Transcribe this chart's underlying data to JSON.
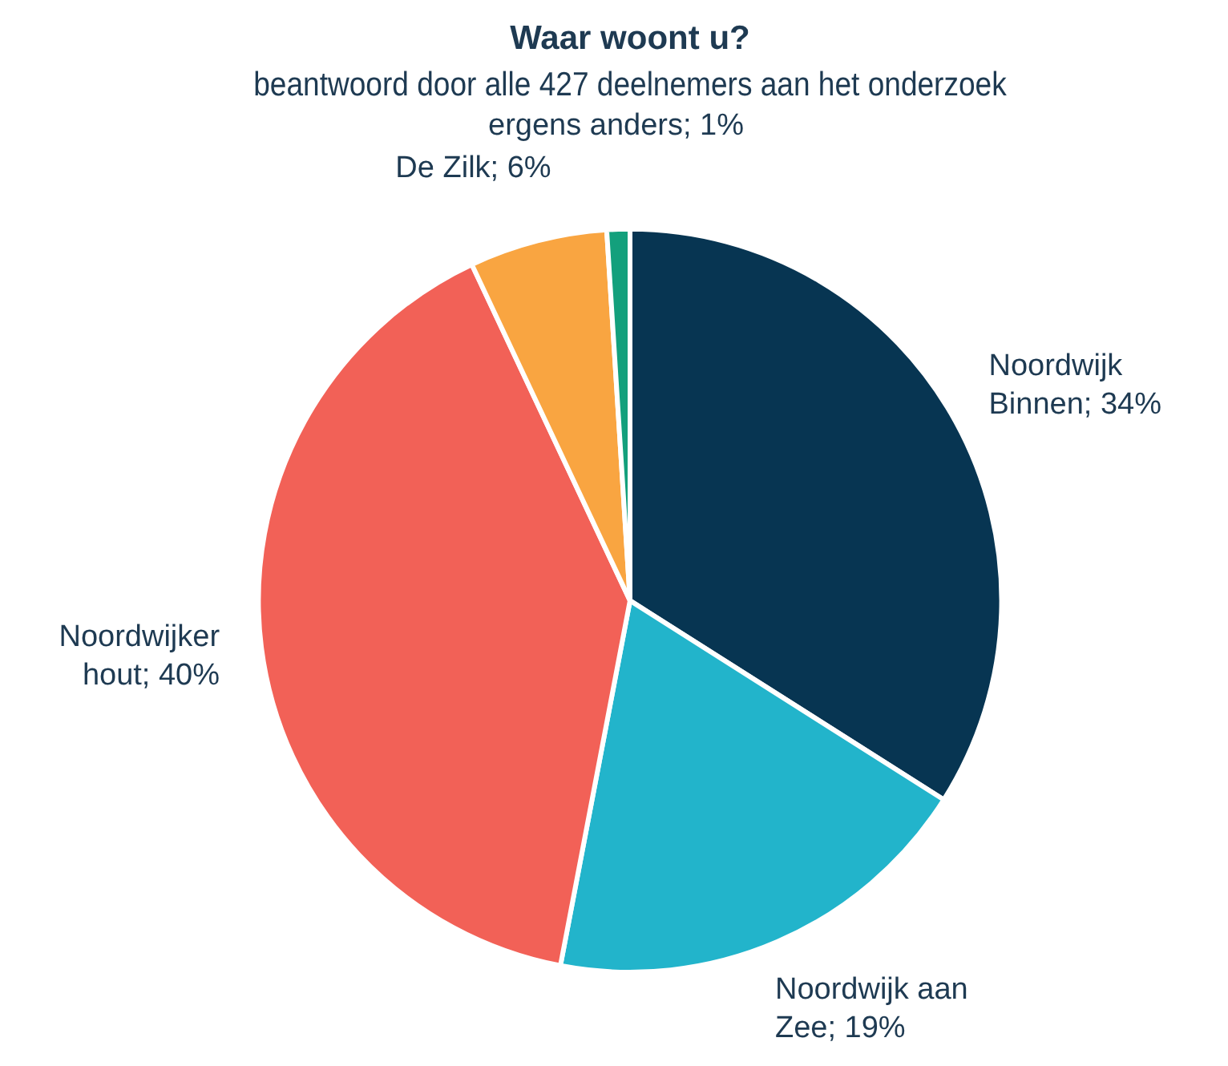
{
  "chart_data": {
    "type": "pie",
    "title": "Waar woont u?",
    "subtitle": "beantwoord door alle 427 deelnemers aan het onderzoek",
    "categories": [
      "Noordwijk Binnen",
      "Noordwijk aan Zee",
      "Noordwijker hout",
      "De Zilk",
      "ergens anders"
    ],
    "values": [
      34,
      19,
      40,
      6,
      1
    ],
    "value_labels": [
      "34%",
      "19%",
      "40%",
      "6%",
      "1%"
    ],
    "colors": [
      "#073552",
      "#22b4cb",
      "#f26157",
      "#f9a541",
      "#13a07c"
    ]
  }
}
